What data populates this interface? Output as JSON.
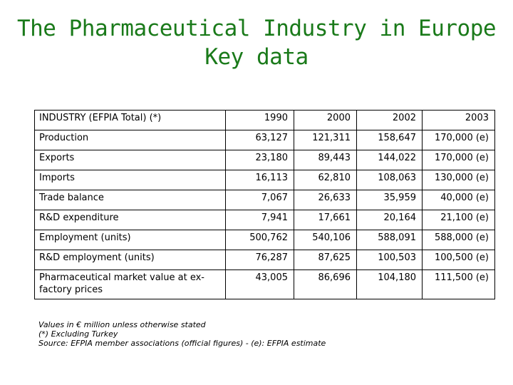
{
  "title": {
    "line1": "The Pharmaceutical Industry in Europe",
    "line2": "Key data"
  },
  "table": {
    "header": {
      "label": "INDUSTRY (EFPIA Total) (*)",
      "years": [
        "1990",
        "2000",
        "2002",
        "2003"
      ]
    },
    "rows": [
      {
        "label": "Production",
        "values": [
          "63,127",
          "121,311",
          "158,647",
          "170,000 (e)"
        ]
      },
      {
        "label": "Exports",
        "values": [
          "23,180",
          "89,443",
          "144,022",
          "170,000 (e)"
        ]
      },
      {
        "label": "Imports",
        "values": [
          "16,113",
          "62,810",
          "108,063",
          "130,000 (e)"
        ]
      },
      {
        "label": "Trade balance",
        "values": [
          "7,067",
          "26,633",
          "35,959",
          "40,000 (e)"
        ]
      },
      {
        "label": "R&D expenditure",
        "values": [
          "7,941",
          "17,661",
          "20,164",
          "21,100 (e)"
        ]
      },
      {
        "label": "Employment (units)",
        "values": [
          "500,762",
          "540,106",
          "588,091",
          "588,000 (e)"
        ]
      },
      {
        "label": "R&D employment (units)",
        "values": [
          "76,287",
          "87,625",
          "100,503",
          "100,500 (e)"
        ]
      },
      {
        "label": "Pharmaceutical market value at ex-factory prices",
        "values": [
          "43,005",
          "86,696",
          "104,180",
          "111,500 (e)"
        ]
      }
    ]
  },
  "notes": {
    "line1": "Values in € million unless otherwise stated",
    "line2": "(*)    Excluding Turkey",
    "line3": "Source: EFPIA member associations (official figures) - (e): EFPIA estimate"
  }
}
